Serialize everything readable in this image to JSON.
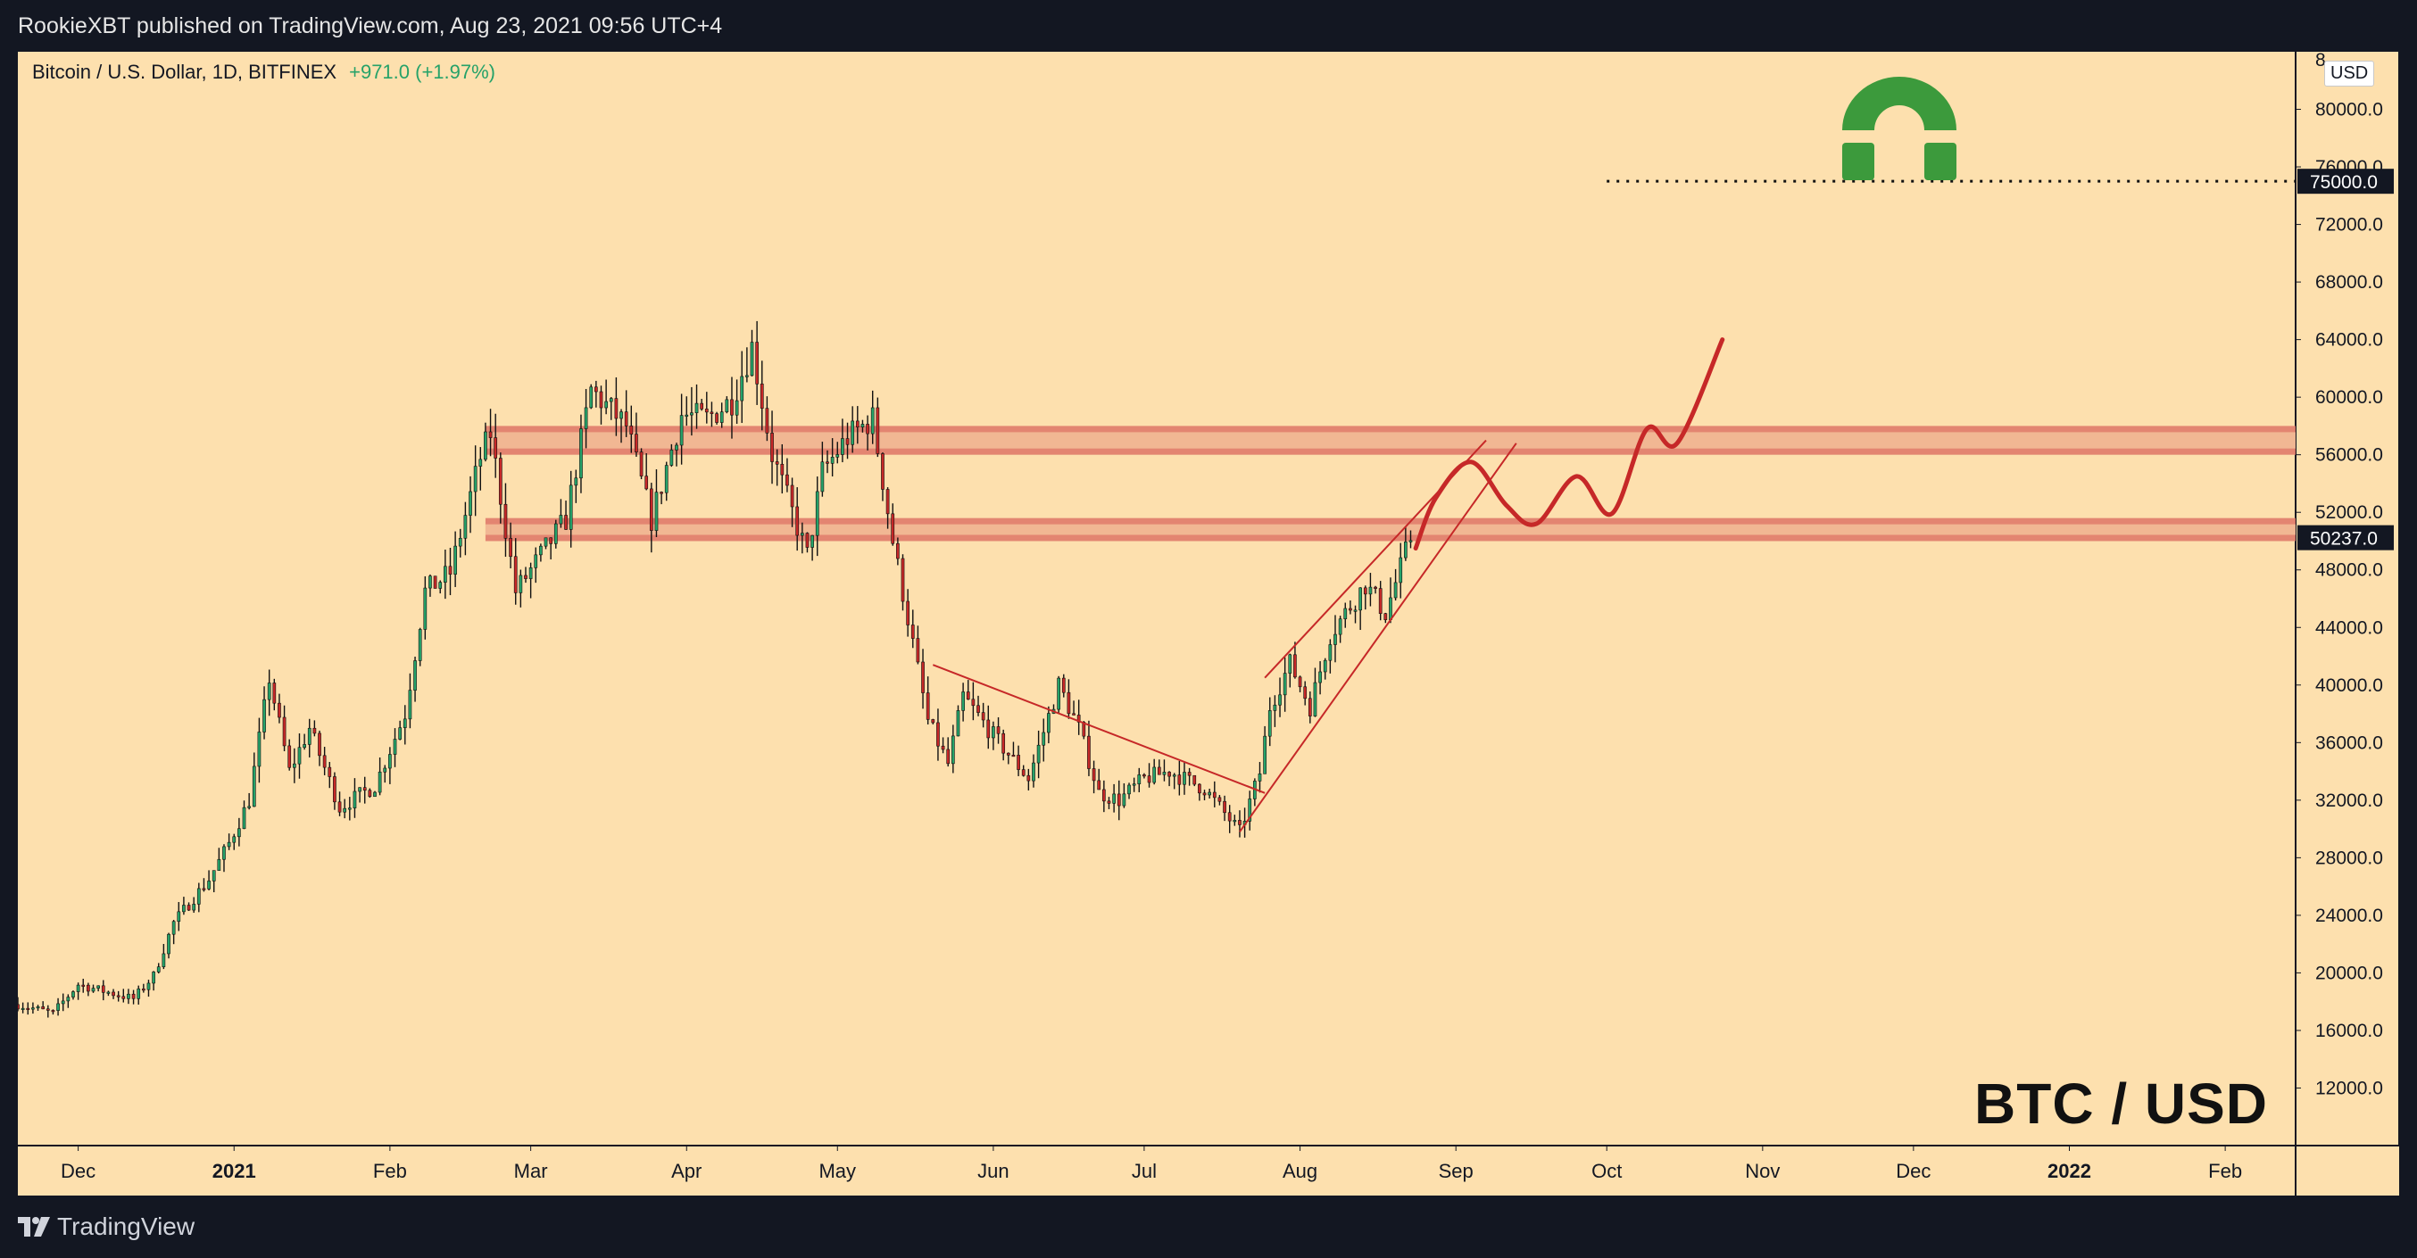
{
  "header": {
    "publisher_line": "RookieXBT published on TradingView.com, Aug 23, 2021 09:56 UTC+4"
  },
  "footer": {
    "brand": "TradingView"
  },
  "chart_header": {
    "symbol": "Bitcoin / U.S. Dollar, 1D, BITFINEX",
    "change": "+971.0 (+1.97%)"
  },
  "currency_button": "USD",
  "watermark_text": "BTC / USD",
  "colors": {
    "background": "#fde0ae",
    "up": "#26a269",
    "down": "#c62828",
    "zone": "#e07b6a",
    "projection": "#c62828",
    "logo": "#3c9a3c",
    "frame": "#131722"
  },
  "chart_data": {
    "type": "candlestick",
    "title": "Bitcoin / U.S. Dollar, 1D, BITFINEX",
    "ylim": [
      8000,
      84000
    ],
    "y_ticks": [
      12000,
      16000,
      20000,
      24000,
      28000,
      32000,
      36000,
      40000,
      44000,
      48000,
      52000,
      56000,
      60000,
      64000,
      68000,
      72000,
      76000,
      80000
    ],
    "y_tick_labels": [
      "12000.0",
      "16000.0",
      "20000.0",
      "24000.0",
      "28000.0",
      "32000.0",
      "36000.0",
      "40000.0",
      "44000.0",
      "48000.0",
      "52000.0",
      "56000.0",
      "60000.0",
      "64000.0",
      "68000.0",
      "72000.0",
      "76000.0",
      "80000.0"
    ],
    "x_range": [
      "2020-11-19",
      "2022-02-15"
    ],
    "x_ticks": [
      {
        "date": "2020-12-01",
        "label": "Dec",
        "bold": false
      },
      {
        "date": "2021-01-01",
        "label": "2021",
        "bold": true
      },
      {
        "date": "2021-02-01",
        "label": "Feb",
        "bold": false
      },
      {
        "date": "2021-03-01",
        "label": "Mar",
        "bold": false
      },
      {
        "date": "2021-04-01",
        "label": "Apr",
        "bold": false
      },
      {
        "date": "2021-05-01",
        "label": "May",
        "bold": false
      },
      {
        "date": "2021-06-01",
        "label": "Jun",
        "bold": false
      },
      {
        "date": "2021-07-01",
        "label": "Jul",
        "bold": false
      },
      {
        "date": "2021-08-01",
        "label": "Aug",
        "bold": false
      },
      {
        "date": "2021-09-01",
        "label": "Sep",
        "bold": false
      },
      {
        "date": "2021-10-01",
        "label": "Oct",
        "bold": false
      },
      {
        "date": "2021-11-01",
        "label": "Nov",
        "bold": false
      },
      {
        "date": "2021-12-01",
        "label": "Dec",
        "bold": false
      },
      {
        "date": "2022-01-01",
        "label": "2022",
        "bold": true
      },
      {
        "date": "2022-02-01",
        "label": "Feb",
        "bold": false
      }
    ],
    "price_path": [
      [
        "2020-11-19",
        17800
      ],
      [
        "2020-11-26",
        17200
      ],
      [
        "2020-12-01",
        19200
      ],
      [
        "2020-12-12",
        18200
      ],
      [
        "2020-12-16",
        19800
      ],
      [
        "2020-12-20",
        23500
      ],
      [
        "2020-12-27",
        26500
      ],
      [
        "2020-12-31",
        29000
      ],
      [
        "2021-01-04",
        32000
      ],
      [
        "2021-01-08",
        40500
      ],
      [
        "2021-01-12",
        34000
      ],
      [
        "2021-01-16",
        37000
      ],
      [
        "2021-01-22",
        31500
      ],
      [
        "2021-01-29",
        33000
      ],
      [
        "2021-02-04",
        38000
      ],
      [
        "2021-02-08",
        46500
      ],
      [
        "2021-02-13",
        47800
      ],
      [
        "2021-02-19",
        55800
      ],
      [
        "2021-02-21",
        57500
      ],
      [
        "2021-02-26",
        46500
      ],
      [
        "2021-03-01",
        48000
      ],
      [
        "2021-03-08",
        51500
      ],
      [
        "2021-03-13",
        60500
      ],
      [
        "2021-03-20",
        58000
      ],
      [
        "2021-03-25",
        51500
      ],
      [
        "2021-03-31",
        58800
      ],
      [
        "2021-04-05",
        58500
      ],
      [
        "2021-04-10",
        59800
      ],
      [
        "2021-04-14",
        63500
      ],
      [
        "2021-04-18",
        56000
      ],
      [
        "2021-04-25",
        49000
      ],
      [
        "2021-04-28",
        54800
      ],
      [
        "2021-05-03",
        57200
      ],
      [
        "2021-05-08",
        58500
      ],
      [
        "2021-05-12",
        50000
      ],
      [
        "2021-05-19",
        37500
      ],
      [
        "2021-05-23",
        34500
      ],
      [
        "2021-05-26",
        39200
      ],
      [
        "2021-06-01",
        36500
      ],
      [
        "2021-06-08",
        33500
      ],
      [
        "2021-06-14",
        40000
      ],
      [
        "2021-06-18",
        37000
      ],
      [
        "2021-06-22",
        32500
      ],
      [
        "2021-06-26",
        32000
      ],
      [
        "2021-07-01",
        33500
      ],
      [
        "2021-07-06",
        34000
      ],
      [
        "2021-07-13",
        32800
      ],
      [
        "2021-07-20",
        29800
      ],
      [
        "2021-07-24",
        33900
      ],
      [
        "2021-07-26",
        38500
      ],
      [
        "2021-07-30",
        41500
      ],
      [
        "2021-08-03",
        38500
      ],
      [
        "2021-08-07",
        43500
      ],
      [
        "2021-08-14",
        47000
      ],
      [
        "2021-08-18",
        45000
      ],
      [
        "2021-08-23",
        50237
      ]
    ],
    "daily_candles_seed": 7,
    "horizontal_zones": [
      {
        "from": "2021-02-20",
        "to_right_edge": true,
        "low": 56000,
        "high": 58000
      },
      {
        "from": "2021-02-20",
        "to_right_edge": true,
        "low": 50000,
        "high": 51600
      }
    ],
    "trendlines": [
      {
        "name": "descending-resistance",
        "points": [
          [
            "2021-05-20",
            41400
          ],
          [
            "2021-07-25",
            32500
          ]
        ]
      },
      {
        "name": "channel-lower",
        "points": [
          [
            "2021-07-20",
            29800
          ],
          [
            "2021-09-13",
            56800
          ]
        ]
      },
      {
        "name": "channel-upper",
        "points": [
          [
            "2021-07-25",
            40500
          ],
          [
            "2021-09-07",
            57000
          ]
        ]
      }
    ],
    "projection": [
      [
        "2021-08-24",
        49500
      ],
      [
        "2021-08-28",
        53000
      ],
      [
        "2021-09-04",
        55500
      ],
      [
        "2021-09-11",
        52500
      ],
      [
        "2021-09-17",
        51200
      ],
      [
        "2021-09-25",
        54500
      ],
      [
        "2021-10-02",
        51900
      ],
      [
        "2021-10-09",
        57800
      ],
      [
        "2021-10-15",
        56800
      ],
      [
        "2021-10-24",
        64000
      ]
    ],
    "target_line": {
      "value": 75000,
      "from": "2021-10-01",
      "label": "75000.0"
    },
    "last_price": {
      "value": 50237,
      "label": "50237.0"
    }
  }
}
